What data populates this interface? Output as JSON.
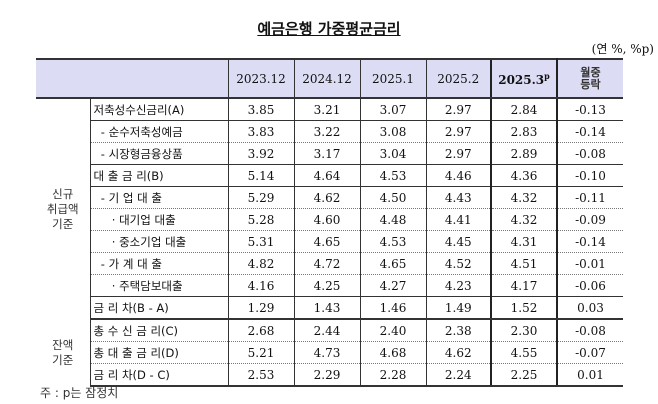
{
  "title": "예금은행 가중평균금리",
  "unit": "(연 %, %p)",
  "columns": [
    "2023.12",
    "2024.12",
    "2025.1",
    "2025.2",
    "2025.3",
    "월중\n등락"
  ],
  "latest_sup": "p",
  "change_label": [
    "월중",
    "등락"
  ],
  "groups": {
    "new": [
      "신규",
      "취급액",
      "기준"
    ],
    "balance": [
      "잔액",
      "기준"
    ]
  },
  "rows": [
    {
      "label": "저축성수신금리(A)",
      "values": [
        "3.85",
        "3.21",
        "3.07",
        "2.97",
        "2.84",
        "-0.13"
      ]
    },
    {
      "label": "  - 순수저축성예금",
      "values": [
        "3.83",
        "3.22",
        "3.08",
        "2.97",
        "2.83",
        "-0.14"
      ]
    },
    {
      "label": "  - 시장형금융상품",
      "values": [
        "3.92",
        "3.17",
        "3.04",
        "2.97",
        "2.89",
        "-0.08"
      ]
    },
    {
      "label": "대 출 금 리(B)",
      "values": [
        "5.14",
        "4.64",
        "4.53",
        "4.46",
        "4.36",
        "-0.10"
      ]
    },
    {
      "label": "  - 기 업 대 출",
      "values": [
        "5.29",
        "4.62",
        "4.50",
        "4.43",
        "4.32",
        "-0.11"
      ]
    },
    {
      "label": "     · 대기업 대출",
      "values": [
        "5.28",
        "4.60",
        "4.48",
        "4.41",
        "4.32",
        "-0.09"
      ]
    },
    {
      "label": "     · 중소기업 대출",
      "values": [
        "5.31",
        "4.65",
        "4.53",
        "4.45",
        "4.31",
        "-0.14"
      ]
    },
    {
      "label": "  - 가 계 대 출",
      "values": [
        "4.82",
        "4.72",
        "4.65",
        "4.52",
        "4.51",
        "-0.01"
      ]
    },
    {
      "label": "     · 주택담보대출",
      "values": [
        "4.16",
        "4.25",
        "4.27",
        "4.23",
        "4.17",
        "-0.06"
      ]
    },
    {
      "label": "금 리 차(B - A)",
      "values": [
        "1.29",
        "1.43",
        "1.46",
        "1.49",
        "1.52",
        "0.03"
      ]
    },
    {
      "label": "총 수 신 금 리(C)",
      "values": [
        "2.68",
        "2.44",
        "2.40",
        "2.38",
        "2.30",
        "-0.08"
      ]
    },
    {
      "label": "총 대 출 금 리(D)",
      "values": [
        "5.21",
        "4.73",
        "4.68",
        "4.62",
        "4.55",
        "-0.07"
      ]
    },
    {
      "label": "금 리 차(D - C)",
      "values": [
        "2.53",
        "2.29",
        "2.28",
        "2.24",
        "2.25",
        "0.01"
      ]
    }
  ],
  "footnote": "주 : p는 잠정치"
}
